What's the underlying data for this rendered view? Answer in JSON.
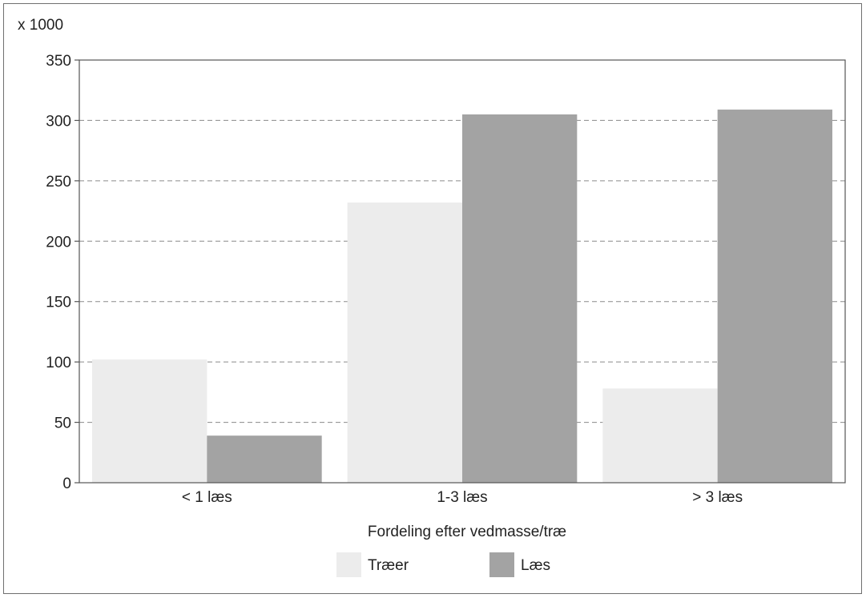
{
  "chart_data": {
    "type": "bar",
    "unit_label": "x 1000",
    "xlabel": "Fordeling efter vedmasse/træ",
    "categories": [
      "< 1 læs",
      "1-3 læs",
      "> 3 læs"
    ],
    "series": [
      {
        "name": "Træer",
        "values": [
          102,
          232,
          78
        ],
        "color": "#ececec"
      },
      {
        "name": "Læs",
        "values": [
          39,
          305,
          309
        ],
        "color": "#a3a3a3"
      }
    ],
    "ylim": [
      0,
      350
    ],
    "yticks": [
      0,
      50,
      100,
      150,
      200,
      250,
      300,
      350
    ],
    "grid": true,
    "legend_position": "bottom"
  }
}
